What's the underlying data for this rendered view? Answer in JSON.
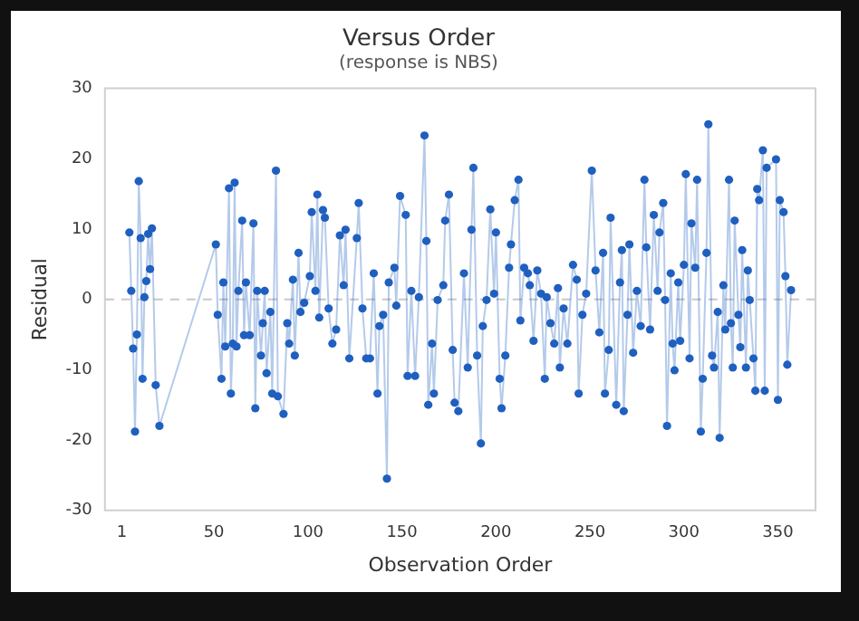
{
  "chart_data": {
    "type": "line",
    "title": "Versus Order",
    "subtitle": "(response is NBS)",
    "xlabel": "Observation Order",
    "ylabel": "Residual",
    "xlim": [
      -8,
      370
    ],
    "xticks": [
      1,
      50,
      100,
      150,
      200,
      250,
      300,
      350
    ],
    "ylim": [
      -30,
      30
    ],
    "yticks": [
      -30,
      -20,
      -10,
      0,
      10,
      20,
      30
    ],
    "grid": false,
    "legend": false,
    "marker": "circle",
    "line_style": "solid",
    "ref_lines": [
      {
        "axis": "y",
        "value": 0,
        "color": "#c8c8c8",
        "line_style": "dashed"
      }
    ],
    "series": [
      {
        "color": "#1f5fbf",
        "x": [
          5,
          6,
          7,
          8,
          9,
          10,
          11,
          12,
          13,
          14,
          15,
          16,
          17,
          19,
          21,
          51,
          52,
          54,
          55,
          56,
          58,
          59,
          60,
          61,
          62,
          63,
          65,
          66,
          67,
          69,
          71,
          72,
          73,
          75,
          76,
          77,
          78,
          80,
          81,
          83,
          84,
          87,
          89,
          90,
          92,
          93,
          95,
          96,
          98,
          101,
          102,
          104,
          105,
          106,
          108,
          109,
          111,
          113,
          115,
          117,
          119,
          120,
          122,
          126,
          127,
          129,
          131,
          133,
          135,
          137,
          138,
          140,
          142,
          143,
          146,
          147,
          149,
          152,
          153,
          155,
          157,
          159,
          162,
          163,
          164,
          166,
          167,
          169,
          172,
          173,
          175,
          177,
          178,
          180,
          183,
          185,
          187,
          188,
          190,
          192,
          193,
          195,
          197,
          199,
          200,
          202,
          203,
          205,
          207,
          208,
          210,
          212,
          213,
          215,
          217,
          218,
          220,
          222,
          224,
          226,
          227,
          229,
          231,
          233,
          234,
          236,
          238,
          241,
          243,
          244,
          246,
          248,
          251,
          253,
          255,
          257,
          258,
          260,
          261,
          264,
          266,
          267,
          268,
          270,
          271,
          273,
          275,
          277,
          279,
          280,
          282,
          284,
          286,
          287,
          289,
          290,
          291,
          293,
          294,
          295,
          297,
          298,
          300,
          301,
          303,
          304,
          306,
          307,
          309,
          310,
          312,
          313,
          315,
          316,
          318,
          319,
          321,
          322,
          324,
          325,
          326,
          327,
          329,
          330,
          331,
          333,
          334,
          335,
          337,
          338,
          339,
          340,
          342,
          343,
          344,
          349,
          350,
          351,
          353,
          354,
          355,
          357
        ],
        "values": [
          9.5,
          1.2,
          -7,
          -18.8,
          -5,
          16.8,
          8.7,
          -11.3,
          0.3,
          2.6,
          9.3,
          4.3,
          10.1,
          -12.2,
          -18,
          7.8,
          -2.2,
          -11.3,
          2.4,
          -6.7,
          15.8,
          -13.4,
          -6.3,
          16.6,
          -6.7,
          1.2,
          11.2,
          -5.1,
          2.4,
          -5.1,
          10.8,
          -15.5,
          1.2,
          -8,
          -3.4,
          1.2,
          -10.5,
          -1.8,
          -13.4,
          18.3,
          -13.8,
          -16.3,
          -3.4,
          -6.3,
          2.8,
          -8,
          6.6,
          -1.8,
          -0.5,
          3.3,
          12.4,
          1.2,
          14.9,
          -2.6,
          12.7,
          11.6,
          -1.3,
          -6.3,
          -4.3,
          9.1,
          2,
          9.9,
          -8.4,
          8.7,
          13.7,
          -1.3,
          -8.4,
          -8.4,
          3.7,
          -13.4,
          -3.8,
          -2.2,
          -25.5,
          2.4,
          4.5,
          -0.9,
          14.7,
          12,
          -10.9,
          1.2,
          -10.9,
          0.3,
          23.3,
          8.3,
          -15,
          -6.3,
          -13.4,
          -0.1,
          2,
          11.2,
          14.9,
          -7.2,
          -14.7,
          -15.9,
          3.7,
          -9.7,
          9.9,
          18.7,
          -8,
          -20.5,
          -3.8,
          -0.1,
          12.8,
          0.8,
          9.5,
          -11.3,
          -15.5,
          -8,
          4.5,
          7.8,
          14.1,
          17,
          -3,
          4.5,
          3.7,
          2,
          -5.9,
          4.1,
          0.8,
          -11.3,
          0.3,
          -3.4,
          -6.3,
          1.6,
          -9.7,
          -1.3,
          -6.3,
          4.9,
          2.8,
          -13.4,
          -2.2,
          0.8,
          18.3,
          4.1,
          -4.7,
          6.6,
          -13.4,
          -7.2,
          11.6,
          -15,
          2.4,
          7,
          -15.9,
          -2.2,
          7.8,
          -7.6,
          1.2,
          -3.8,
          17,
          7.4,
          -4.3,
          12,
          1.2,
          9.5,
          13.7,
          -0.1,
          -18,
          3.7,
          -6.3,
          -10.1,
          2.4,
          -5.9,
          4.9,
          17.8,
          -8.4,
          10.8,
          4.5,
          17,
          -18.8,
          -11.3,
          6.6,
          24.9,
          -8,
          -9.7,
          -1.8,
          -19.7,
          2,
          -4.3,
          17,
          -3.4,
          -9.7,
          11.2,
          -2.2,
          -6.8,
          7,
          -9.7,
          4.1,
          -0.1,
          -8.4,
          -13,
          15.7,
          14.1,
          21.2,
          -13,
          18.7,
          19.9,
          -14.3,
          14.1,
          12.4,
          3.3,
          -9.3,
          1.3
        ]
      }
    ]
  }
}
